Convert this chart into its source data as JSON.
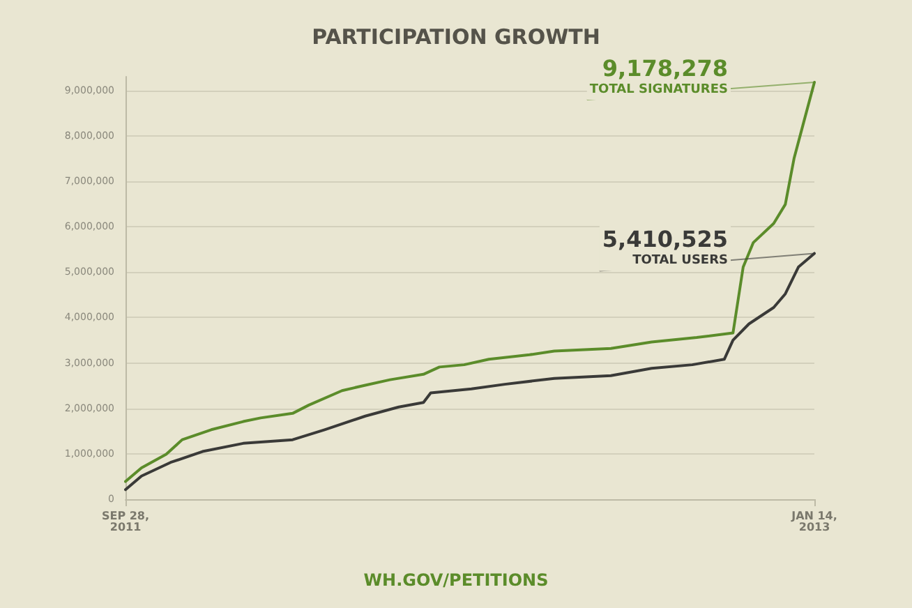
{
  "chart_data": {
    "type": "line",
    "title": "PARTICIPATION GROWTH",
    "series": [
      {
        "name": "TOTAL SIGNATURES",
        "color": "#5b8c2a",
        "x": [
          "2011-09-28",
          "2011-10-09",
          "2011-10-26",
          "2011-11-06",
          "2011-11-26",
          "2011-12-18",
          "2011-12-30",
          "2012-01-21",
          "2012-02-01",
          "2012-02-24",
          "2012-03-11",
          "2012-03-28",
          "2012-04-20",
          "2012-05-01",
          "2012-05-18",
          "2012-06-04",
          "2012-07-02",
          "2012-07-19",
          "2012-08-27",
          "2012-09-24",
          "2012-10-25",
          "2012-11-19",
          "2012-11-26",
          "2012-12-03",
          "2012-12-17",
          "2012-12-25",
          "2012-12-31",
          "2013-01-06",
          "2013-01-14"
        ],
        "values": [
          390000,
          690000,
          990000,
          1310000,
          1530000,
          1710000,
          1790000,
          1890000,
          2070000,
          2390000,
          2510000,
          2630000,
          2750000,
          2910000,
          2960000,
          3080000,
          3180000,
          3260000,
          3320000,
          3460000,
          3560000,
          3660000,
          5110000,
          5650000,
          6070000,
          6490000,
          7500000,
          8220000,
          9178278
        ],
        "value_labels": [
          null,
          null,
          null,
          null,
          null,
          null,
          null,
          null,
          null,
          null,
          null,
          null,
          null,
          null,
          null,
          null,
          null,
          null,
          null,
          null,
          null,
          null,
          null,
          null,
          null,
          null,
          null,
          null,
          "9,178,278"
        ]
      },
      {
        "name": "TOTAL USERS",
        "color": "#3a3a38",
        "x": [
          "2011-09-28",
          "2011-10-09",
          "2011-10-29",
          "2011-11-20",
          "2011-12-18",
          "2012-01-21",
          "2012-02-12",
          "2012-03-11",
          "2012-04-03",
          "2012-04-20",
          "2012-04-25",
          "2012-05-23",
          "2012-06-15",
          "2012-07-19",
          "2012-08-27",
          "2012-09-24",
          "2012-10-22",
          "2012-11-13",
          "2012-11-19",
          "2012-11-30",
          "2012-12-17",
          "2012-12-25",
          "2013-01-03",
          "2013-01-14"
        ],
        "values": [
          210000,
          510000,
          810000,
          1050000,
          1230000,
          1310000,
          1530000,
          1830000,
          2030000,
          2130000,
          2340000,
          2430000,
          2530000,
          2660000,
          2720000,
          2880000,
          2960000,
          3080000,
          3500000,
          3860000,
          4220000,
          4520000,
          5110000,
          5410525
        ],
        "value_labels": [
          null,
          null,
          null,
          null,
          null,
          null,
          null,
          null,
          null,
          null,
          null,
          null,
          null,
          null,
          null,
          null,
          null,
          null,
          null,
          null,
          null,
          null,
          null,
          "5,410,525"
        ]
      }
    ],
    "xlim": [
      "2011-09-28",
      "2013-01-14"
    ],
    "xticks": [
      {
        "value": "2011-09-28",
        "label": "SEP 28,\n2011"
      },
      {
        "value": "2013-01-14",
        "label": "JAN 14,\n2013"
      }
    ],
    "ylim": [
      0,
      9300000
    ],
    "yticks": [
      0,
      {
        "value": 1000000,
        "label": "1,000,000"
      },
      {
        "value": 2000000,
        "label": "2,000,000"
      },
      {
        "value": 3000000,
        "label": "3,000,000"
      },
      {
        "value": 4000000,
        "label": "4,000,000"
      },
      {
        "value": 5000000,
        "label": "5,000,000"
      },
      {
        "value": 6000000,
        "label": "6,000,000"
      },
      {
        "value": 7000000,
        "label": "7,000,000"
      },
      {
        "value": 8000000,
        "label": "8,000,000"
      },
      {
        "value": 9000000,
        "label": "9,000,000"
      }
    ],
    "grid": "y",
    "legend": false,
    "marker": "none",
    "line_style": "solid",
    "annotations": [
      "WH.GOV/PETITIONS"
    ]
  }
}
